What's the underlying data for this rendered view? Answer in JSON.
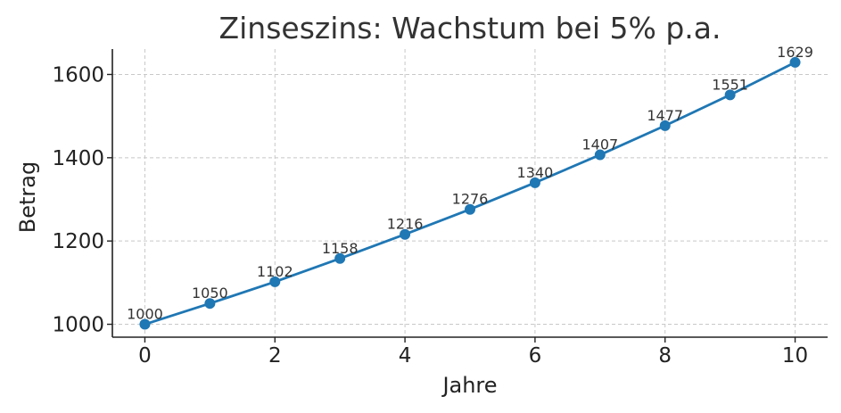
{
  "chart_data": {
    "type": "line",
    "title": "Zinseszins: Wachstum bei 5% p.a.",
    "xlabel": "Jahre",
    "ylabel": "Betrag",
    "x": [
      0,
      1,
      2,
      3,
      4,
      5,
      6,
      7,
      8,
      9,
      10
    ],
    "series": [
      {
        "values": [
          1000,
          1050,
          1102,
          1158,
          1216,
          1276,
          1340,
          1407,
          1477,
          1551,
          1629
        ],
        "labels": [
          "1000",
          "1050",
          "1102",
          "1158",
          "1216",
          "1276",
          "1340",
          "1407",
          "1477",
          "1551",
          "1629"
        ],
        "color": "#1f77b4"
      }
    ],
    "xticks": [
      "0",
      "2",
      "4",
      "6",
      "8",
      "10"
    ],
    "yticks": [
      "1000",
      "1200",
      "1400",
      "1600"
    ],
    "xlim": [
      -0.5,
      10.5
    ],
    "ylim": [
      969,
      1661
    ],
    "grid": true
  }
}
